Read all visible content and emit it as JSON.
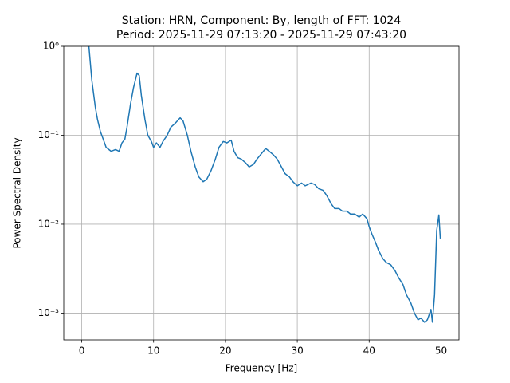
{
  "chart_data": {
    "type": "line",
    "title": "Station: HRN, Component: By, length of FFT: 1024",
    "subtitle": "Period: 2025-11-29 07:13:20 - 2025-11-29 07:43:20",
    "x_label": "Frequency [Hz]",
    "y_label": "Power Spectral Density",
    "log_y": true,
    "grid": true,
    "xlim": [
      -2.5,
      52.5
    ],
    "xticks": [
      0,
      10,
      20,
      30,
      40,
      50
    ],
    "ylim": [
      0.0005,
      1
    ],
    "yticks": [
      {
        "value": 1,
        "label": "10⁰"
      },
      {
        "value": 0.1,
        "label": "10⁻¹"
      },
      {
        "value": 0.01,
        "label": "10⁻²"
      },
      {
        "value": 0.001,
        "label": "10⁻³"
      }
    ],
    "x": [
      1.0,
      1.4,
      1.9,
      2.2,
      2.6,
      3.0,
      3.4,
      4.1,
      4.7,
      5.2,
      5.6,
      6.0,
      6.3,
      6.8,
      7.2,
      7.7,
      8.0,
      8.3,
      8.8,
      9.2,
      9.7,
      10.0,
      10.4,
      10.9,
      11.3,
      11.9,
      12.4,
      13.0,
      13.7,
      14.1,
      14.7,
      15.2,
      15.8,
      16.3,
      16.9,
      17.4,
      18.0,
      18.6,
      19.1,
      19.7,
      20.2,
      20.8,
      21.2,
      21.7,
      22.2,
      22.8,
      23.3,
      23.9,
      24.4,
      25.0,
      25.6,
      26.1,
      26.7,
      27.2,
      27.8,
      28.3,
      28.9,
      29.4,
      30.0,
      30.6,
      31.1,
      31.9,
      32.4,
      33.0,
      33.6,
      34.1,
      34.7,
      35.2,
      35.8,
      36.3,
      36.9,
      37.4,
      38.0,
      38.6,
      39.1,
      39.7,
      40.0,
      40.4,
      40.9,
      41.3,
      41.9,
      42.4,
      43.0,
      43.6,
      44.1,
      44.7,
      45.2,
      45.8,
      46.3,
      46.8,
      47.2,
      47.7,
      48.1,
      48.6,
      48.8,
      49.1,
      49.4,
      49.7,
      49.9
    ],
    "series": [
      {
        "name": "PSD",
        "color": "#1f77b4",
        "values": [
          1.0,
          0.42,
          0.205,
          0.15,
          0.11,
          0.09,
          0.073,
          0.066,
          0.069,
          0.066,
          0.082,
          0.09,
          0.123,
          0.227,
          0.34,
          0.5,
          0.47,
          0.28,
          0.15,
          0.1,
          0.085,
          0.073,
          0.082,
          0.073,
          0.085,
          0.1,
          0.123,
          0.136,
          0.157,
          0.145,
          0.1,
          0.066,
          0.044,
          0.034,
          0.03,
          0.032,
          0.04,
          0.054,
          0.073,
          0.085,
          0.082,
          0.088,
          0.066,
          0.056,
          0.054,
          0.049,
          0.044,
          0.047,
          0.054,
          0.062,
          0.071,
          0.066,
          0.06,
          0.054,
          0.044,
          0.037,
          0.034,
          0.03,
          0.027,
          0.029,
          0.027,
          0.029,
          0.028,
          0.025,
          0.024,
          0.021,
          0.017,
          0.015,
          0.015,
          0.014,
          0.014,
          0.013,
          0.013,
          0.012,
          0.013,
          0.0115,
          0.0094,
          0.0077,
          0.0062,
          0.0051,
          0.0041,
          0.0037,
          0.0035,
          0.003,
          0.0025,
          0.0021,
          0.0016,
          0.0013,
          0.001,
          0.00084,
          0.00088,
          0.00079,
          0.00084,
          0.0011,
          0.00079,
          0.0016,
          0.0085,
          0.0127,
          0.0069
        ]
      }
    ]
  }
}
